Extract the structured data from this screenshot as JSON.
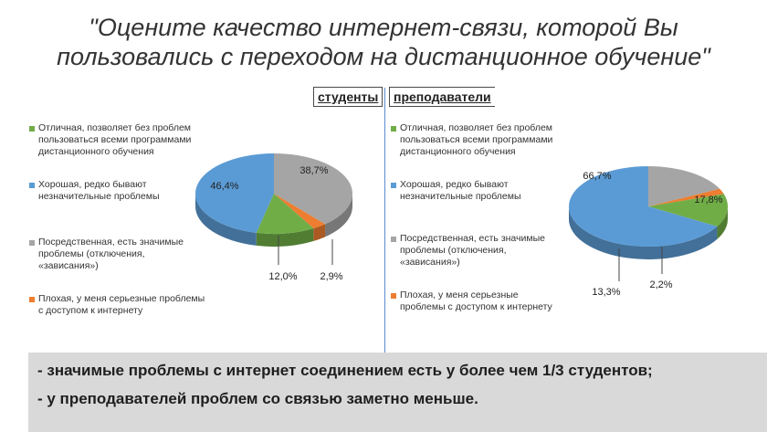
{
  "title_line1": "\"Оцените качество интернет-связи, которой Вы",
  "title_line2": "пользовались с переходом на дистанционное обучение\"",
  "headers": {
    "students": "студенты",
    "teachers": "преподаватели"
  },
  "colors": {
    "excellent": "#70ad47",
    "good": "#5b9bd5",
    "mediocre": "#a5a5a5",
    "bad": "#ed7d31"
  },
  "chart_data": [
    {
      "type": "pie",
      "title": "студенты",
      "categories": [
        "Отличная",
        "Хорошая",
        "Посредственная",
        "Плохая"
      ],
      "values": [
        12.0,
        46.4,
        38.7,
        2.9
      ],
      "labels": [
        "12,0%",
        "46,4%",
        "38,7%",
        "2,9%"
      ],
      "legend": [
        [
          "Отличная, позволяет без проблем",
          "пользоваться всеми программами",
          "дистанционного обучения"
        ],
        [
          "Хорошая, редко бывают",
          "незначительные проблемы"
        ],
        [
          "Посредственная, есть значимые",
          "проблемы (отключения,",
          "«зависания»)"
        ],
        [
          "Плохая, у меня серьезные проблемы",
          "с доступом к интернету"
        ]
      ]
    },
    {
      "type": "pie",
      "title": "преподаватели",
      "categories": [
        "Отличная",
        "Хорошая",
        "Посредственная",
        "Плохая"
      ],
      "values": [
        13.3,
        66.7,
        17.8,
        2.2
      ],
      "labels": [
        "13,3%",
        "66,7%",
        "17,8%",
        "2,2%"
      ],
      "legend": [
        [
          "Отличная, позволяет без проблем",
          "пользоваться всеми программами",
          "дистанционного обучения"
        ],
        [
          "Хорошая, редко бывают",
          "незначительные проблемы"
        ],
        [
          "Посредственная, есть значимые",
          "проблемы (отключения,",
          "«зависания»)"
        ],
        [
          "Плохая, у меня серьезные",
          "проблемы с доступом к интернету"
        ]
      ]
    }
  ],
  "conclusions": [
    "-  значимые проблемы с интернет соединением есть у более чем 1/3 студентов;",
    "-  у преподавателей проблем со связью заметно меньше."
  ]
}
